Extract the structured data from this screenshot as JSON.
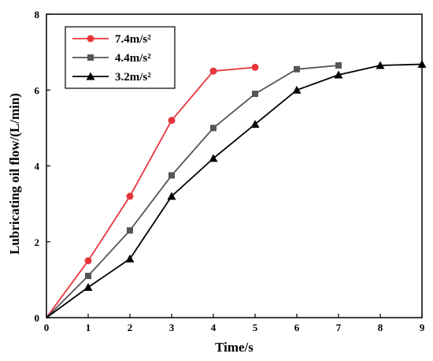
{
  "chart_data": {
    "type": "line",
    "xlabel": "Time/s",
    "ylabel": "Lubricating oil flow/(L/min)",
    "xlim": [
      0,
      9
    ],
    "ylim": [
      0,
      8
    ],
    "x_ticks": [
      "0",
      "1",
      "2",
      "3",
      "4",
      "5",
      "6",
      "7",
      "8",
      "9"
    ],
    "y_ticks": [
      "0",
      "2",
      "4",
      "6",
      "8"
    ],
    "grid": false,
    "legend_position": "top-left",
    "series": [
      {
        "name": "7.4m/s²",
        "color": "#e8353b",
        "marker": "circle",
        "x": [
          0,
          1,
          2,
          3,
          4,
          5
        ],
        "y": [
          0,
          1.5,
          3.2,
          5.2,
          6.5,
          6.6
        ]
      },
      {
        "name": "4.4m/s²",
        "color": "#555555",
        "marker": "square",
        "x": [
          0,
          1,
          2,
          3,
          4,
          5,
          6,
          7
        ],
        "y": [
          0,
          1.1,
          2.3,
          3.75,
          5.0,
          5.9,
          6.55,
          6.65
        ]
      },
      {
        "name": "3.2m/s²",
        "color": "#000000",
        "marker": "triangle",
        "x": [
          0,
          1,
          2,
          3,
          4,
          5,
          6,
          7,
          8,
          9
        ],
        "y": [
          0,
          0.8,
          1.55,
          3.2,
          4.2,
          5.1,
          6.0,
          6.4,
          6.65,
          6.68
        ]
      }
    ]
  }
}
